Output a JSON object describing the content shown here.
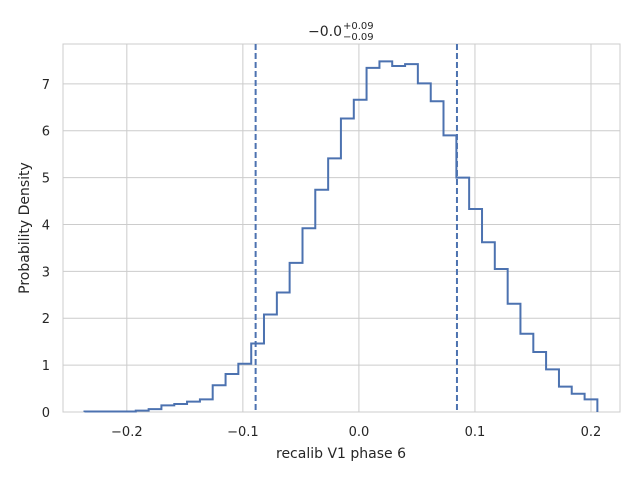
{
  "chart_data": {
    "type": "step",
    "title": {
      "value": "−0.0",
      "plus": "+0.09",
      "minus": "−0.09"
    },
    "xlabel": "recalib V1 phase 6",
    "ylabel": "Probability Density",
    "xlim": [
      -0.255,
      0.225
    ],
    "ylim": [
      0,
      7.85
    ],
    "xticks": [
      -0.2,
      -0.1,
      0.0,
      0.1,
      0.2
    ],
    "xtick_labels": [
      "−0.2",
      "−0.1",
      "0.0",
      "0.1",
      "0.2"
    ],
    "yticks": [
      0,
      1,
      2,
      3,
      4,
      5,
      6,
      7
    ],
    "ytick_labels": [
      "0",
      "1",
      "2",
      "3",
      "4",
      "5",
      "6",
      "7"
    ],
    "grid": true,
    "bin_edges": [
      -0.2365,
      -0.2254,
      -0.2144,
      -0.2033,
      -0.1923,
      -0.1812,
      -0.1702,
      -0.1591,
      -0.1481,
      -0.137,
      -0.126,
      -0.1149,
      -0.1039,
      -0.0928,
      -0.0818,
      -0.0707,
      -0.0597,
      -0.0486,
      -0.0376,
      -0.0265,
      -0.0155,
      -0.0044,
      0.0066,
      0.0177,
      0.0287,
      0.0398,
      0.0508,
      0.0619,
      0.0729,
      0.084,
      0.095,
      0.1061,
      0.1171,
      0.1282,
      0.1392,
      0.1503,
      0.1613,
      0.1724,
      0.1834,
      0.1945,
      0.2055
    ],
    "densities": [
      0.01,
      0.01,
      0.01,
      0.01,
      0.03,
      0.06,
      0.14,
      0.17,
      0.22,
      0.27,
      0.57,
      0.81,
      1.03,
      1.46,
      2.08,
      2.55,
      3.18,
      3.92,
      4.74,
      5.41,
      6.26,
      6.66,
      7.34,
      7.48,
      7.38,
      7.42,
      7.01,
      6.63,
      5.9,
      5.0,
      4.33,
      3.62,
      3.05,
      2.31,
      1.67,
      1.28,
      0.91,
      0.54,
      0.39,
      0.27
    ],
    "quantile_lines": [
      -0.089,
      0.0845
    ],
    "line_color": "#4c72b0",
    "grid_color": "#cccccc"
  }
}
